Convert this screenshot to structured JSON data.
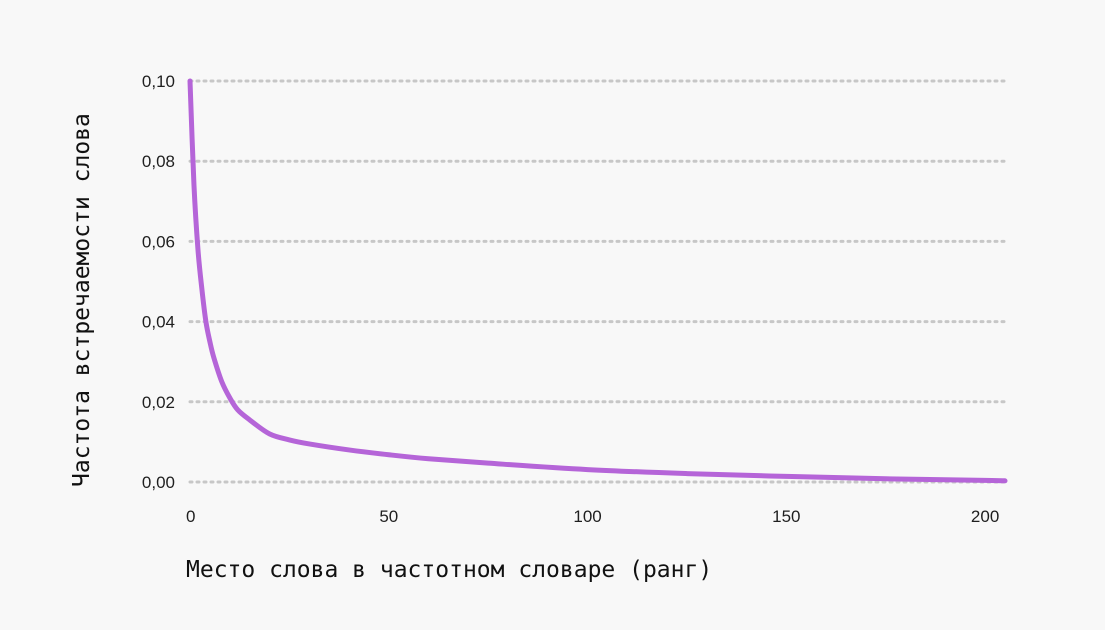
{
  "chart_data": {
    "type": "line",
    "title": "",
    "xlabel": "Место слова в частотном словаре (ранг)",
    "ylabel": "Частота встречаемости слова",
    "xlim": [
      0,
      205
    ],
    "ylim": [
      0,
      0.1
    ],
    "x_ticks": [
      0,
      50,
      100,
      150,
      200
    ],
    "x_tick_labels": [
      "0",
      "50",
      "100",
      "150",
      "200"
    ],
    "y_ticks": [
      0,
      0.02,
      0.04,
      0.06,
      0.08,
      0.1
    ],
    "y_tick_labels": [
      "0,00",
      "0,02",
      "0,04",
      "0,06",
      "0,08",
      "0,10"
    ],
    "grid": "horizontal dotted",
    "line_color": "#b565d8",
    "grid_color": "#c7c7c7",
    "series": [
      {
        "x": [
          0,
          1,
          2,
          3,
          4,
          5,
          6,
          8,
          10,
          12,
          15,
          20,
          25,
          30,
          40,
          50,
          60,
          75,
          100,
          125,
          150,
          175,
          200,
          205
        ],
        "y": [
          0.1,
          0.074,
          0.058,
          0.048,
          0.04,
          0.035,
          0.031,
          0.025,
          0.021,
          0.018,
          0.0155,
          0.012,
          0.0105,
          0.0095,
          0.008,
          0.0068,
          0.0058,
          0.0047,
          0.0031,
          0.0021,
          0.0014,
          0.0008,
          0.0004,
          0.0003
        ]
      }
    ]
  }
}
